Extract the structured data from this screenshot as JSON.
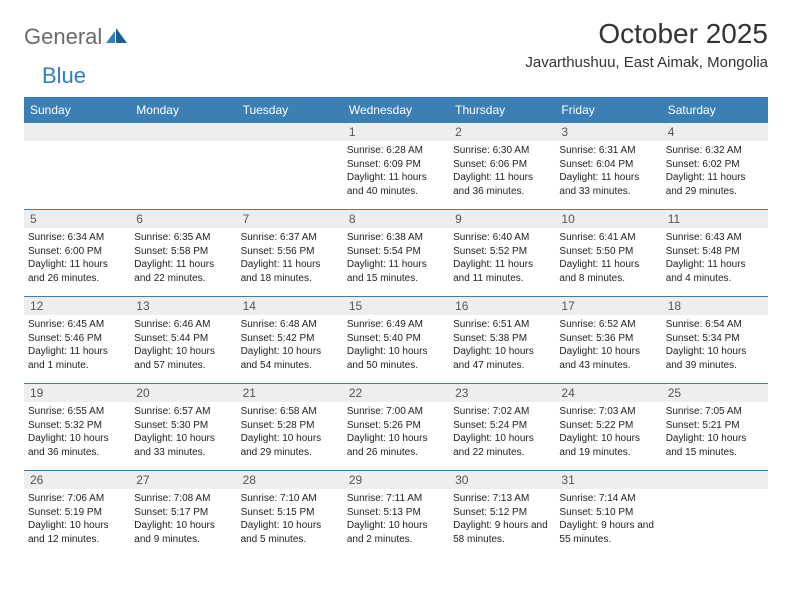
{
  "brand": {
    "general": "General",
    "blue": "Blue"
  },
  "title": "October 2025",
  "location": "Javarthushuu, East Aimak, Mongolia",
  "colors": {
    "header_bg": "#3b7fb5",
    "header_text": "#ffffff",
    "daynum_bg": "#eeeeee",
    "text": "#222222",
    "brand_grey": "#6b6b6b",
    "brand_blue": "#2f7fb8"
  },
  "day_names": [
    "Sunday",
    "Monday",
    "Tuesday",
    "Wednesday",
    "Thursday",
    "Friday",
    "Saturday"
  ],
  "weeks": [
    [
      {
        "n": "",
        "sunrise": "",
        "sunset": "",
        "daylight": ""
      },
      {
        "n": "",
        "sunrise": "",
        "sunset": "",
        "daylight": ""
      },
      {
        "n": "",
        "sunrise": "",
        "sunset": "",
        "daylight": ""
      },
      {
        "n": "1",
        "sunrise": "Sunrise: 6:28 AM",
        "sunset": "Sunset: 6:09 PM",
        "daylight": "Daylight: 11 hours and 40 minutes."
      },
      {
        "n": "2",
        "sunrise": "Sunrise: 6:30 AM",
        "sunset": "Sunset: 6:06 PM",
        "daylight": "Daylight: 11 hours and 36 minutes."
      },
      {
        "n": "3",
        "sunrise": "Sunrise: 6:31 AM",
        "sunset": "Sunset: 6:04 PM",
        "daylight": "Daylight: 11 hours and 33 minutes."
      },
      {
        "n": "4",
        "sunrise": "Sunrise: 6:32 AM",
        "sunset": "Sunset: 6:02 PM",
        "daylight": "Daylight: 11 hours and 29 minutes."
      }
    ],
    [
      {
        "n": "5",
        "sunrise": "Sunrise: 6:34 AM",
        "sunset": "Sunset: 6:00 PM",
        "daylight": "Daylight: 11 hours and 26 minutes."
      },
      {
        "n": "6",
        "sunrise": "Sunrise: 6:35 AM",
        "sunset": "Sunset: 5:58 PM",
        "daylight": "Daylight: 11 hours and 22 minutes."
      },
      {
        "n": "7",
        "sunrise": "Sunrise: 6:37 AM",
        "sunset": "Sunset: 5:56 PM",
        "daylight": "Daylight: 11 hours and 18 minutes."
      },
      {
        "n": "8",
        "sunrise": "Sunrise: 6:38 AM",
        "sunset": "Sunset: 5:54 PM",
        "daylight": "Daylight: 11 hours and 15 minutes."
      },
      {
        "n": "9",
        "sunrise": "Sunrise: 6:40 AM",
        "sunset": "Sunset: 5:52 PM",
        "daylight": "Daylight: 11 hours and 11 minutes."
      },
      {
        "n": "10",
        "sunrise": "Sunrise: 6:41 AM",
        "sunset": "Sunset: 5:50 PM",
        "daylight": "Daylight: 11 hours and 8 minutes."
      },
      {
        "n": "11",
        "sunrise": "Sunrise: 6:43 AM",
        "sunset": "Sunset: 5:48 PM",
        "daylight": "Daylight: 11 hours and 4 minutes."
      }
    ],
    [
      {
        "n": "12",
        "sunrise": "Sunrise: 6:45 AM",
        "sunset": "Sunset: 5:46 PM",
        "daylight": "Daylight: 11 hours and 1 minute."
      },
      {
        "n": "13",
        "sunrise": "Sunrise: 6:46 AM",
        "sunset": "Sunset: 5:44 PM",
        "daylight": "Daylight: 10 hours and 57 minutes."
      },
      {
        "n": "14",
        "sunrise": "Sunrise: 6:48 AM",
        "sunset": "Sunset: 5:42 PM",
        "daylight": "Daylight: 10 hours and 54 minutes."
      },
      {
        "n": "15",
        "sunrise": "Sunrise: 6:49 AM",
        "sunset": "Sunset: 5:40 PM",
        "daylight": "Daylight: 10 hours and 50 minutes."
      },
      {
        "n": "16",
        "sunrise": "Sunrise: 6:51 AM",
        "sunset": "Sunset: 5:38 PM",
        "daylight": "Daylight: 10 hours and 47 minutes."
      },
      {
        "n": "17",
        "sunrise": "Sunrise: 6:52 AM",
        "sunset": "Sunset: 5:36 PM",
        "daylight": "Daylight: 10 hours and 43 minutes."
      },
      {
        "n": "18",
        "sunrise": "Sunrise: 6:54 AM",
        "sunset": "Sunset: 5:34 PM",
        "daylight": "Daylight: 10 hours and 39 minutes."
      }
    ],
    [
      {
        "n": "19",
        "sunrise": "Sunrise: 6:55 AM",
        "sunset": "Sunset: 5:32 PM",
        "daylight": "Daylight: 10 hours and 36 minutes."
      },
      {
        "n": "20",
        "sunrise": "Sunrise: 6:57 AM",
        "sunset": "Sunset: 5:30 PM",
        "daylight": "Daylight: 10 hours and 33 minutes."
      },
      {
        "n": "21",
        "sunrise": "Sunrise: 6:58 AM",
        "sunset": "Sunset: 5:28 PM",
        "daylight": "Daylight: 10 hours and 29 minutes."
      },
      {
        "n": "22",
        "sunrise": "Sunrise: 7:00 AM",
        "sunset": "Sunset: 5:26 PM",
        "daylight": "Daylight: 10 hours and 26 minutes."
      },
      {
        "n": "23",
        "sunrise": "Sunrise: 7:02 AM",
        "sunset": "Sunset: 5:24 PM",
        "daylight": "Daylight: 10 hours and 22 minutes."
      },
      {
        "n": "24",
        "sunrise": "Sunrise: 7:03 AM",
        "sunset": "Sunset: 5:22 PM",
        "daylight": "Daylight: 10 hours and 19 minutes."
      },
      {
        "n": "25",
        "sunrise": "Sunrise: 7:05 AM",
        "sunset": "Sunset: 5:21 PM",
        "daylight": "Daylight: 10 hours and 15 minutes."
      }
    ],
    [
      {
        "n": "26",
        "sunrise": "Sunrise: 7:06 AM",
        "sunset": "Sunset: 5:19 PM",
        "daylight": "Daylight: 10 hours and 12 minutes."
      },
      {
        "n": "27",
        "sunrise": "Sunrise: 7:08 AM",
        "sunset": "Sunset: 5:17 PM",
        "daylight": "Daylight: 10 hours and 9 minutes."
      },
      {
        "n": "28",
        "sunrise": "Sunrise: 7:10 AM",
        "sunset": "Sunset: 5:15 PM",
        "daylight": "Daylight: 10 hours and 5 minutes."
      },
      {
        "n": "29",
        "sunrise": "Sunrise: 7:11 AM",
        "sunset": "Sunset: 5:13 PM",
        "daylight": "Daylight: 10 hours and 2 minutes."
      },
      {
        "n": "30",
        "sunrise": "Sunrise: 7:13 AM",
        "sunset": "Sunset: 5:12 PM",
        "daylight": "Daylight: 9 hours and 58 minutes."
      },
      {
        "n": "31",
        "sunrise": "Sunrise: 7:14 AM",
        "sunset": "Sunset: 5:10 PM",
        "daylight": "Daylight: 9 hours and 55 minutes."
      },
      {
        "n": "",
        "sunrise": "",
        "sunset": "",
        "daylight": ""
      }
    ]
  ]
}
